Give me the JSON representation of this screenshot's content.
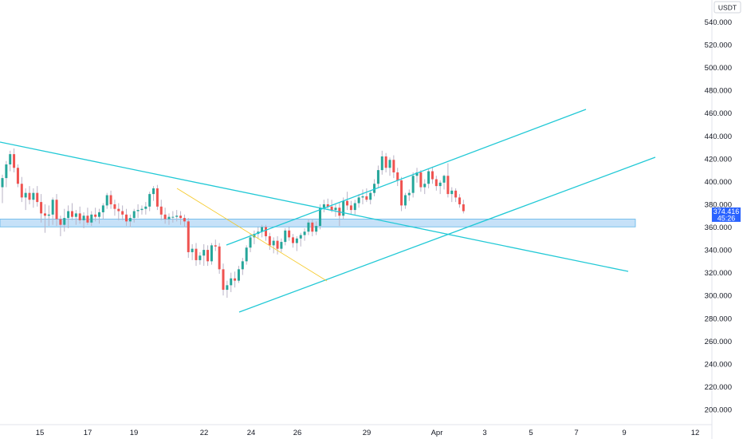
{
  "chart_data": {
    "type": "candlestick",
    "currency": "USDT",
    "y_range": [
      190,
      555
    ],
    "y_ticks": [
      "200.000",
      "220.000",
      "240.000",
      "260.000",
      "280.000",
      "300.000",
      "320.000",
      "340.000",
      "360.000",
      "380.000",
      "400.000",
      "420.000",
      "440.000",
      "460.000",
      "480.000",
      "500.000",
      "520.000",
      "540.000"
    ],
    "x_ticks": [
      "15",
      "17",
      "19",
      "22",
      "24",
      "26",
      "29",
      "Apr",
      "3",
      "5",
      "7",
      "9",
      "12"
    ],
    "last_price": "374.416",
    "countdown": "45:26",
    "colors": {
      "up": "#26a69a",
      "down": "#ef5350",
      "trendline": "#22c9d6",
      "fib_line": "#f5c518",
      "zone_fill": "#b3d7f5",
      "zone_border": "#5fb4e8",
      "badge": "#2962ff"
    },
    "zone": {
      "low": 363,
      "high": 367
    },
    "candles": [
      {
        "o": 395,
        "h": 406,
        "l": 381,
        "c": 403
      },
      {
        "o": 403,
        "h": 418,
        "l": 395,
        "c": 415
      },
      {
        "o": 415,
        "h": 427,
        "l": 409,
        "c": 424
      },
      {
        "o": 424,
        "h": 429,
        "l": 408,
        "c": 412
      },
      {
        "o": 412,
        "h": 415,
        "l": 395,
        "c": 398
      },
      {
        "o": 398,
        "h": 404,
        "l": 382,
        "c": 386
      },
      {
        "o": 386,
        "h": 394,
        "l": 375,
        "c": 390
      },
      {
        "o": 390,
        "h": 396,
        "l": 380,
        "c": 384
      },
      {
        "o": 384,
        "h": 394,
        "l": 377,
        "c": 390
      },
      {
        "o": 390,
        "h": 396,
        "l": 378,
        "c": 382
      },
      {
        "o": 382,
        "h": 389,
        "l": 364,
        "c": 372
      },
      {
        "o": 372,
        "h": 380,
        "l": 355,
        "c": 370
      },
      {
        "o": 370,
        "h": 379,
        "l": 361,
        "c": 371
      },
      {
        "o": 371,
        "h": 386,
        "l": 362,
        "c": 384
      },
      {
        "o": 384,
        "h": 389,
        "l": 361,
        "c": 367
      },
      {
        "o": 367,
        "h": 370,
        "l": 352,
        "c": 362
      },
      {
        "o": 362,
        "h": 376,
        "l": 356,
        "c": 368
      },
      {
        "o": 368,
        "h": 379,
        "l": 359,
        "c": 374
      },
      {
        "o": 374,
        "h": 381,
        "l": 366,
        "c": 369
      },
      {
        "o": 369,
        "h": 375,
        "l": 362,
        "c": 372
      },
      {
        "o": 372,
        "h": 378,
        "l": 363,
        "c": 366
      },
      {
        "o": 366,
        "h": 373,
        "l": 359,
        "c": 370
      },
      {
        "o": 370,
        "h": 377,
        "l": 362,
        "c": 364
      },
      {
        "o": 364,
        "h": 374,
        "l": 361,
        "c": 371
      },
      {
        "o": 371,
        "h": 377,
        "l": 365,
        "c": 369
      },
      {
        "o": 369,
        "h": 376,
        "l": 363,
        "c": 373
      },
      {
        "o": 373,
        "h": 381,
        "l": 367,
        "c": 379
      },
      {
        "o": 379,
        "h": 390,
        "l": 376,
        "c": 388
      },
      {
        "o": 388,
        "h": 392,
        "l": 376,
        "c": 380
      },
      {
        "o": 380,
        "h": 384,
        "l": 370,
        "c": 376
      },
      {
        "o": 376,
        "h": 381,
        "l": 366,
        "c": 374
      },
      {
        "o": 374,
        "h": 379,
        "l": 366,
        "c": 371
      },
      {
        "o": 371,
        "h": 376,
        "l": 361,
        "c": 365
      },
      {
        "o": 365,
        "h": 371,
        "l": 360,
        "c": 368
      },
      {
        "o": 368,
        "h": 376,
        "l": 364,
        "c": 374
      },
      {
        "o": 374,
        "h": 380,
        "l": 368,
        "c": 375
      },
      {
        "o": 375,
        "h": 379,
        "l": 371,
        "c": 376
      },
      {
        "o": 376,
        "h": 382,
        "l": 371,
        "c": 378
      },
      {
        "o": 378,
        "h": 391,
        "l": 374,
        "c": 389
      },
      {
        "o": 389,
        "h": 396,
        "l": 383,
        "c": 394
      },
      {
        "o": 394,
        "h": 397,
        "l": 375,
        "c": 378
      },
      {
        "o": 378,
        "h": 384,
        "l": 366,
        "c": 371
      },
      {
        "o": 371,
        "h": 377,
        "l": 363,
        "c": 367
      },
      {
        "o": 367,
        "h": 372,
        "l": 362,
        "c": 369
      },
      {
        "o": 369,
        "h": 374,
        "l": 364,
        "c": 369
      },
      {
        "o": 369,
        "h": 375,
        "l": 365,
        "c": 370
      },
      {
        "o": 370,
        "h": 374,
        "l": 362,
        "c": 368
      },
      {
        "o": 368,
        "h": 371,
        "l": 360,
        "c": 365
      },
      {
        "o": 365,
        "h": 368,
        "l": 333,
        "c": 338
      },
      {
        "o": 338,
        "h": 345,
        "l": 331,
        "c": 341
      },
      {
        "o": 341,
        "h": 346,
        "l": 326,
        "c": 331
      },
      {
        "o": 331,
        "h": 338,
        "l": 327,
        "c": 335
      },
      {
        "o": 335,
        "h": 345,
        "l": 326,
        "c": 340
      },
      {
        "o": 340,
        "h": 344,
        "l": 326,
        "c": 330
      },
      {
        "o": 330,
        "h": 346,
        "l": 327,
        "c": 344
      },
      {
        "o": 344,
        "h": 349,
        "l": 339,
        "c": 343
      },
      {
        "o": 343,
        "h": 346,
        "l": 319,
        "c": 323
      },
      {
        "o": 323,
        "h": 328,
        "l": 300,
        "c": 305
      },
      {
        "o": 305,
        "h": 313,
        "l": 298,
        "c": 309
      },
      {
        "o": 309,
        "h": 320,
        "l": 303,
        "c": 315
      },
      {
        "o": 315,
        "h": 321,
        "l": 307,
        "c": 313
      },
      {
        "o": 313,
        "h": 326,
        "l": 311,
        "c": 323
      },
      {
        "o": 323,
        "h": 333,
        "l": 318,
        "c": 330
      },
      {
        "o": 330,
        "h": 344,
        "l": 327,
        "c": 342
      },
      {
        "o": 342,
        "h": 354,
        "l": 338,
        "c": 351
      },
      {
        "o": 351,
        "h": 357,
        "l": 345,
        "c": 354
      },
      {
        "o": 354,
        "h": 360,
        "l": 350,
        "c": 356
      },
      {
        "o": 356,
        "h": 362,
        "l": 351,
        "c": 360
      },
      {
        "o": 360,
        "h": 362,
        "l": 348,
        "c": 352
      },
      {
        "o": 352,
        "h": 355,
        "l": 340,
        "c": 344
      },
      {
        "o": 344,
        "h": 351,
        "l": 337,
        "c": 348
      },
      {
        "o": 348,
        "h": 352,
        "l": 336,
        "c": 341
      },
      {
        "o": 341,
        "h": 350,
        "l": 338,
        "c": 347
      },
      {
        "o": 347,
        "h": 359,
        "l": 344,
        "c": 357
      },
      {
        "o": 357,
        "h": 360,
        "l": 348,
        "c": 351
      },
      {
        "o": 351,
        "h": 354,
        "l": 342,
        "c": 346
      },
      {
        "o": 346,
        "h": 352,
        "l": 339,
        "c": 350
      },
      {
        "o": 350,
        "h": 355,
        "l": 343,
        "c": 353
      },
      {
        "o": 353,
        "h": 359,
        "l": 348,
        "c": 356
      },
      {
        "o": 356,
        "h": 367,
        "l": 353,
        "c": 364
      },
      {
        "o": 364,
        "h": 367,
        "l": 352,
        "c": 356
      },
      {
        "o": 356,
        "h": 365,
        "l": 353,
        "c": 361
      },
      {
        "o": 361,
        "h": 380,
        "l": 358,
        "c": 377
      },
      {
        "o": 377,
        "h": 384,
        "l": 373,
        "c": 380
      },
      {
        "o": 380,
        "h": 385,
        "l": 376,
        "c": 378
      },
      {
        "o": 378,
        "h": 384,
        "l": 373,
        "c": 375
      },
      {
        "o": 375,
        "h": 381,
        "l": 369,
        "c": 377
      },
      {
        "o": 377,
        "h": 382,
        "l": 361,
        "c": 370
      },
      {
        "o": 370,
        "h": 386,
        "l": 367,
        "c": 383
      },
      {
        "o": 383,
        "h": 391,
        "l": 375,
        "c": 379
      },
      {
        "o": 379,
        "h": 383,
        "l": 371,
        "c": 375
      },
      {
        "o": 375,
        "h": 384,
        "l": 371,
        "c": 381
      },
      {
        "o": 381,
        "h": 389,
        "l": 377,
        "c": 386
      },
      {
        "o": 386,
        "h": 393,
        "l": 380,
        "c": 387
      },
      {
        "o": 387,
        "h": 394,
        "l": 382,
        "c": 384
      },
      {
        "o": 384,
        "h": 392,
        "l": 380,
        "c": 390
      },
      {
        "o": 390,
        "h": 402,
        "l": 387,
        "c": 398
      },
      {
        "o": 398,
        "h": 414,
        "l": 395,
        "c": 410
      },
      {
        "o": 410,
        "h": 427,
        "l": 406,
        "c": 422
      },
      {
        "o": 422,
        "h": 425,
        "l": 408,
        "c": 412
      },
      {
        "o": 412,
        "h": 421,
        "l": 405,
        "c": 419
      },
      {
        "o": 419,
        "h": 423,
        "l": 403,
        "c": 408
      },
      {
        "o": 408,
        "h": 412,
        "l": 396,
        "c": 401
      },
      {
        "o": 401,
        "h": 404,
        "l": 374,
        "c": 379
      },
      {
        "o": 379,
        "h": 390,
        "l": 376,
        "c": 388
      },
      {
        "o": 388,
        "h": 393,
        "l": 383,
        "c": 390
      },
      {
        "o": 390,
        "h": 408,
        "l": 386,
        "c": 405
      },
      {
        "o": 405,
        "h": 412,
        "l": 399,
        "c": 408
      },
      {
        "o": 408,
        "h": 410,
        "l": 391,
        "c": 395
      },
      {
        "o": 395,
        "h": 402,
        "l": 389,
        "c": 398
      },
      {
        "o": 398,
        "h": 411,
        "l": 394,
        "c": 409
      },
      {
        "o": 409,
        "h": 413,
        "l": 398,
        "c": 402
      },
      {
        "o": 402,
        "h": 405,
        "l": 392,
        "c": 396
      },
      {
        "o": 396,
        "h": 401,
        "l": 389,
        "c": 399
      },
      {
        "o": 399,
        "h": 406,
        "l": 393,
        "c": 405
      },
      {
        "o": 405,
        "h": 416,
        "l": 386,
        "c": 389
      },
      {
        "o": 389,
        "h": 395,
        "l": 382,
        "c": 392
      },
      {
        "o": 392,
        "h": 394,
        "l": 382,
        "c": 386
      },
      {
        "o": 386,
        "h": 389,
        "l": 377,
        "c": 380
      },
      {
        "o": 380,
        "h": 384,
        "l": 372,
        "c": 374
      }
    ]
  }
}
